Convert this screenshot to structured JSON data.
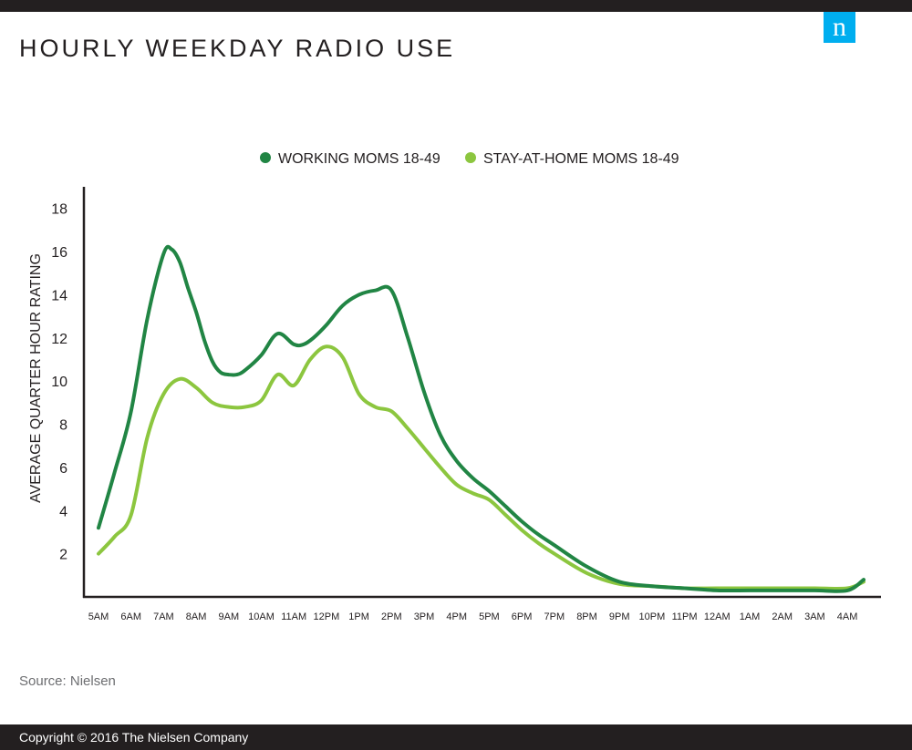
{
  "title": "HOURLY WEEKDAY RADIO USE",
  "logo_letter": "n",
  "source": "Source: Nielsen",
  "copyright": "Copyright © 2016 The Nielsen Company",
  "colors": {
    "working": "#218544",
    "stay": "#8cc63f",
    "logo": "#00aeef",
    "bar": "#231f20"
  },
  "chart_data": {
    "type": "line",
    "ylabel": "AVERAGE QUARTER HOUR RATING",
    "xlabel": "",
    "ylim": [
      0,
      19
    ],
    "yticks": [
      2,
      4,
      6,
      8,
      10,
      12,
      14,
      16,
      18
    ],
    "legend_position": "top-center",
    "grid": false,
    "categories": [
      "5AM",
      "6AM",
      "7AM",
      "8AM",
      "9AM",
      "10AM",
      "11AM",
      "12PM",
      "1PM",
      "2PM",
      "3PM",
      "4PM",
      "5PM",
      "6PM",
      "7PM",
      "8PM",
      "9PM",
      "10PM",
      "11PM",
      "12AM",
      "1AM",
      "2AM",
      "3AM",
      "4AM"
    ],
    "series": [
      {
        "name": "WORKING MOMS 18-49",
        "x": [
          0,
          0.5,
          1,
          1.5,
          2,
          2.25,
          2.5,
          2.75,
          3,
          3.25,
          3.5,
          3.75,
          4,
          4.25,
          4.5,
          5,
          5.5,
          6,
          6.3,
          6.6,
          7,
          7.5,
          8,
          8.5,
          9,
          9.5,
          10,
          10.5,
          11,
          11.5,
          12,
          12.5,
          13,
          13.5,
          14,
          15,
          16,
          17,
          18,
          19,
          20,
          21,
          22,
          23,
          23.5
        ],
        "values": [
          3.2,
          5.8,
          8.6,
          12.9,
          15.9,
          16.1,
          15.5,
          14.3,
          13.2,
          11.9,
          10.9,
          10.4,
          10.3,
          10.3,
          10.5,
          11.2,
          12.2,
          11.7,
          11.7,
          12.0,
          12.6,
          13.5,
          14.0,
          14.2,
          14.2,
          12.0,
          9.5,
          7.5,
          6.3,
          5.5,
          4.9,
          4.2,
          3.5,
          2.9,
          2.4,
          1.4,
          0.7,
          0.5,
          0.4,
          0.3,
          0.3,
          0.3,
          0.3,
          0.3,
          0.8
        ]
      },
      {
        "name": "STAY-AT-HOME MOMS 18-49",
        "x": [
          0,
          0.5,
          1,
          1.5,
          2,
          2.5,
          3,
          3.5,
          4,
          4.5,
          5,
          5.5,
          6,
          6.5,
          7,
          7.5,
          8,
          8.5,
          9,
          9.5,
          10,
          10.5,
          11,
          11.5,
          12,
          12.5,
          13,
          13.5,
          14,
          15,
          16,
          17,
          18,
          19,
          20,
          21,
          22,
          23,
          23.5
        ],
        "values": [
          2.0,
          2.8,
          3.8,
          7.4,
          9.4,
          10.1,
          9.7,
          9.0,
          8.8,
          8.8,
          9.1,
          10.3,
          9.8,
          11.0,
          11.6,
          11.1,
          9.4,
          8.8,
          8.6,
          7.8,
          6.9,
          6.0,
          5.2,
          4.8,
          4.5,
          3.8,
          3.1,
          2.5,
          2.0,
          1.1,
          0.6,
          0.5,
          0.4,
          0.4,
          0.4,
          0.4,
          0.4,
          0.4,
          0.7
        ]
      }
    ]
  }
}
